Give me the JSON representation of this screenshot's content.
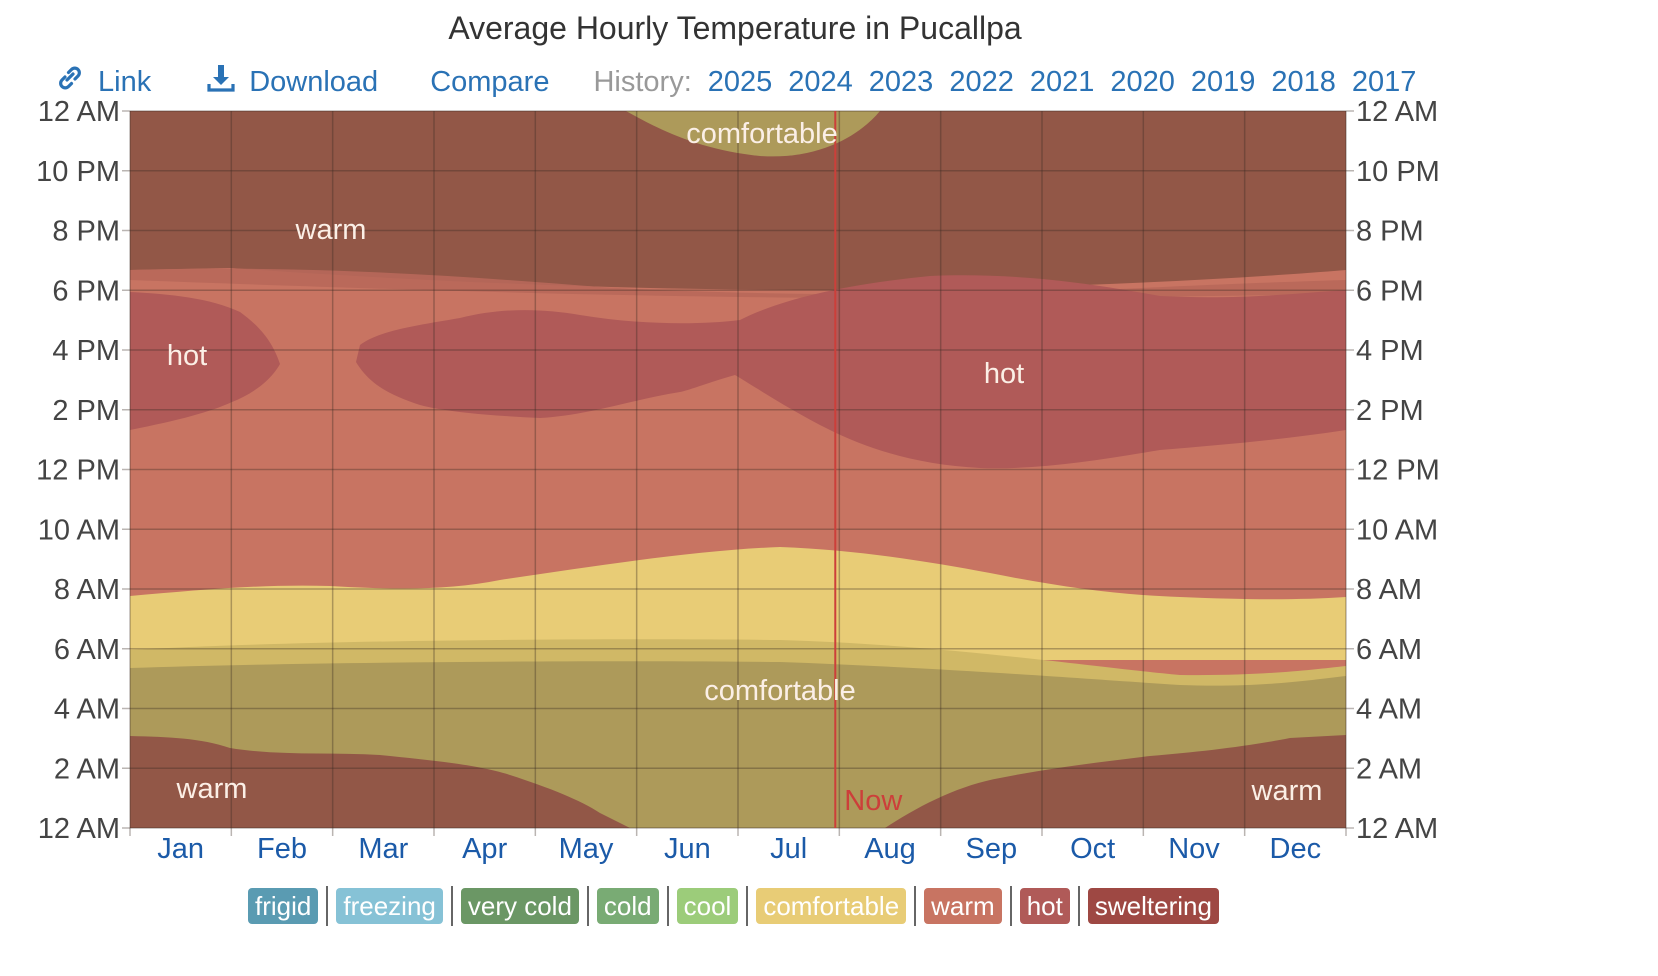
{
  "title": "Average Hourly Temperature in Pucallpa",
  "toolbar": {
    "link_label": "Link",
    "download_label": "Download",
    "compare_label": "Compare",
    "history_label": "History:",
    "years": [
      "2025",
      "2024",
      "2023",
      "2022",
      "2021",
      "2020",
      "2019",
      "2018",
      "2017"
    ]
  },
  "chart_data": {
    "type": "heatmap",
    "title": "Average Hourly Temperature in Pucallpa",
    "y_ticks": [
      "12 AM",
      "10 PM",
      "8 PM",
      "6 PM",
      "4 PM",
      "2 PM",
      "12 PM",
      "10 AM",
      "8 AM",
      "6 AM",
      "4 AM",
      "2 AM",
      "12 AM"
    ],
    "months": [
      "Jan",
      "Feb",
      "Mar",
      "Apr",
      "May",
      "Jun",
      "Jul",
      "Aug",
      "Sep",
      "Oct",
      "Nov",
      "Dec"
    ],
    "now_label": "Now",
    "now_month_fraction": 0.58,
    "zone_labels": [
      "comfortable",
      "warm",
      "hot",
      "hot",
      "comfortable",
      "warm",
      "warm"
    ],
    "band_colors": {
      "warm": "#c87462",
      "hot": "#b05a58",
      "comfortable": "#e8cc76",
      "night_comfortable": "#ad9a5a",
      "night_warm": "#925747",
      "now_line": "#cc3f3a"
    },
    "legend": [
      {
        "label": "frigid",
        "color": "#5a9bb2"
      },
      {
        "label": "freezing",
        "color": "#86c2d6"
      },
      {
        "label": "very cold",
        "color": "#6b9765"
      },
      {
        "label": "cold",
        "color": "#79ab74"
      },
      {
        "label": "cool",
        "color": "#9ccc7a"
      },
      {
        "label": "comfortable",
        "color": "#e8cc76"
      },
      {
        "label": "warm",
        "color": "#c87462"
      },
      {
        "label": "hot",
        "color": "#b05a58"
      },
      {
        "label": "sweltering",
        "color": "#9e4843"
      }
    ]
  }
}
